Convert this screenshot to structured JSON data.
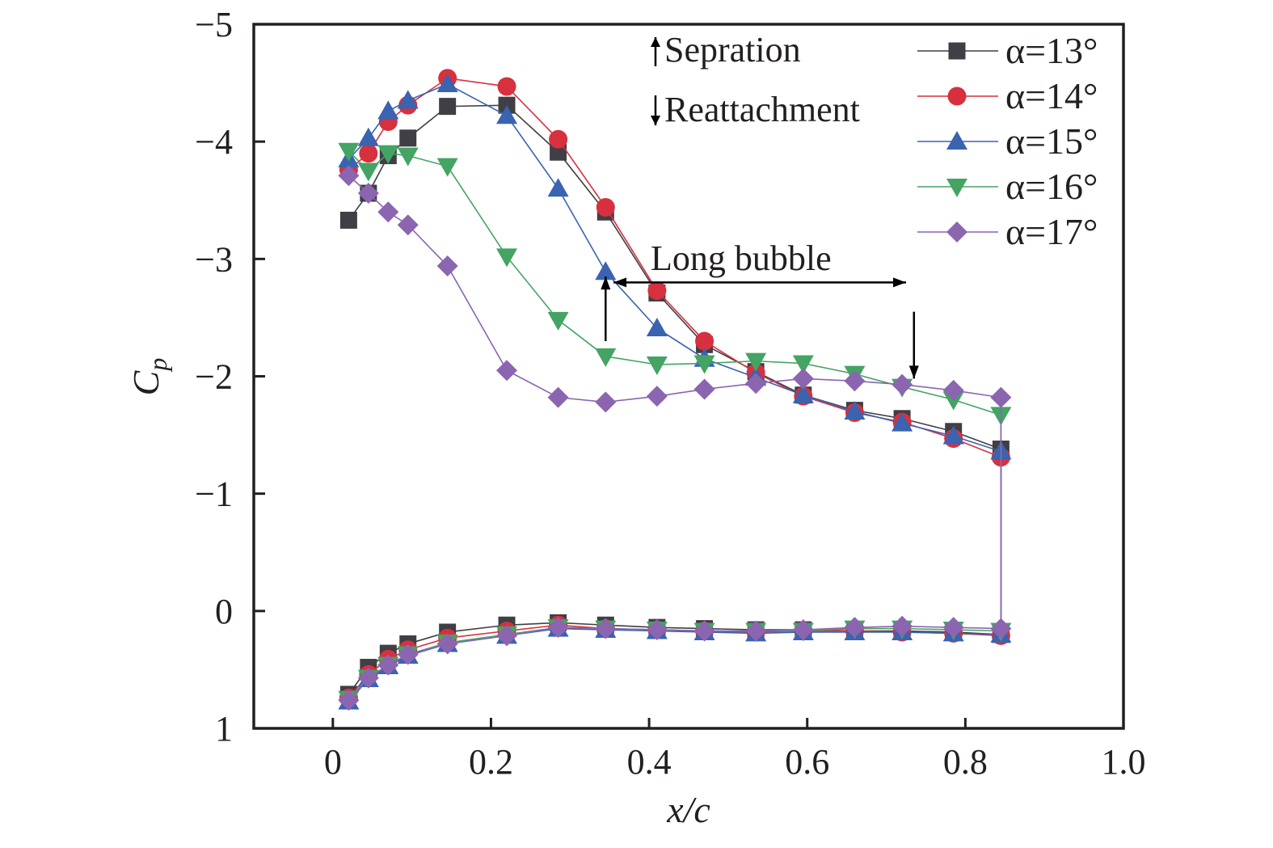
{
  "chart_data": {
    "type": "line",
    "title": "",
    "xlabel": "x/c",
    "ylabel": "Cp",
    "xlim": [
      -0.1,
      1.0
    ],
    "ylim": [
      1,
      -5
    ],
    "y_inverted": true,
    "grid": false,
    "legend_position": "top-right",
    "xticks": [
      0,
      0.2,
      0.4,
      0.6,
      0.8,
      1.0
    ],
    "xtick_labels": [
      "0",
      "0.2",
      "0.4",
      "0.6",
      "0.8",
      "1.0"
    ],
    "yticks": [
      -5,
      -4,
      -3,
      -2,
      -1,
      0,
      1
    ],
    "ytick_labels": [
      "−5",
      "−4",
      "−3",
      "−2",
      "−1",
      "0",
      "1"
    ],
    "x": [
      0.02,
      0.045,
      0.07,
      0.095,
      0.145,
      0.22,
      0.285,
      0.345,
      0.41,
      0.47,
      0.535,
      0.595,
      0.66,
      0.72,
      0.785,
      0.845
    ],
    "series": [
      {
        "name": "α=13°",
        "color": "#3f3f45",
        "marker": "square",
        "upper": [
          -3.33,
          -3.56,
          -3.88,
          -4.03,
          -4.3,
          -4.31,
          -3.91,
          -3.4,
          -2.71,
          -2.27,
          -2.04,
          -1.84,
          -1.71,
          -1.64,
          -1.53,
          -1.38
        ],
        "lower": [
          0.71,
          0.48,
          0.36,
          0.28,
          0.18,
          0.12,
          0.1,
          0.12,
          0.14,
          0.15,
          0.16,
          0.16,
          0.17,
          0.17,
          0.18,
          0.2
        ]
      },
      {
        "name": "α=14°",
        "color": "#d7303f",
        "marker": "circle",
        "upper": [
          -3.76,
          -3.9,
          -4.17,
          -4.31,
          -4.54,
          -4.47,
          -4.02,
          -3.44,
          -2.73,
          -2.3,
          -2.03,
          -1.83,
          -1.69,
          -1.61,
          -1.47,
          -1.31
        ],
        "lower": [
          0.74,
          0.54,
          0.41,
          0.33,
          0.23,
          0.17,
          0.12,
          0.15,
          0.16,
          0.17,
          0.18,
          0.17,
          0.17,
          0.18,
          0.19,
          0.21
        ]
      },
      {
        "name": "α=15°",
        "color": "#3a63b0",
        "marker": "triangle-up",
        "upper": [
          -3.85,
          -4.03,
          -4.26,
          -4.35,
          -4.49,
          -4.22,
          -3.6,
          -2.89,
          -2.41,
          -2.15,
          -1.99,
          -1.84,
          -1.7,
          -1.6,
          -1.49,
          -1.36
        ],
        "lower": [
          0.77,
          0.58,
          0.47,
          0.38,
          0.28,
          0.21,
          0.15,
          0.16,
          0.17,
          0.18,
          0.19,
          0.18,
          0.18,
          0.18,
          0.19,
          0.2
        ]
      },
      {
        "name": "α=16°",
        "color": "#43a463",
        "marker": "triangle-down",
        "upper": [
          -3.92,
          -3.75,
          -3.9,
          -3.88,
          -3.79,
          -3.02,
          -2.48,
          -2.17,
          -2.1,
          -2.11,
          -2.13,
          -2.11,
          -2.02,
          -1.91,
          -1.8,
          -1.67
        ],
        "lower": [
          0.75,
          0.57,
          0.46,
          0.37,
          0.27,
          0.2,
          0.14,
          0.15,
          0.16,
          0.17,
          0.17,
          0.17,
          0.15,
          0.15,
          0.16,
          0.17
        ]
      },
      {
        "name": "α=17°",
        "color": "#8b65b0",
        "marker": "diamond",
        "upper": [
          -3.71,
          -3.56,
          -3.4,
          -3.29,
          -2.94,
          -2.05,
          -1.82,
          -1.78,
          -1.83,
          -1.89,
          -1.94,
          -1.98,
          -1.96,
          -1.93,
          -1.88,
          -1.82
        ],
        "lower": [
          0.76,
          0.57,
          0.46,
          0.37,
          0.28,
          0.21,
          0.14,
          0.15,
          0.16,
          0.17,
          0.17,
          0.16,
          0.14,
          0.13,
          0.14,
          0.15
        ]
      }
    ],
    "annotations": {
      "separation_label": "Sepration",
      "reattachment_label": "Reattachment",
      "bubble_label": "Long bubble",
      "separation_arrow": {
        "x": 0.345,
        "from_cp": -2.3,
        "to_cp": -2.85
      },
      "reattachment_arrow": {
        "x": 0.735,
        "from_cp": -2.55,
        "to_cp": -1.98
      },
      "bubble_span": {
        "from_x": 0.355,
        "to_x": 0.725,
        "cp": -2.8
      }
    }
  }
}
